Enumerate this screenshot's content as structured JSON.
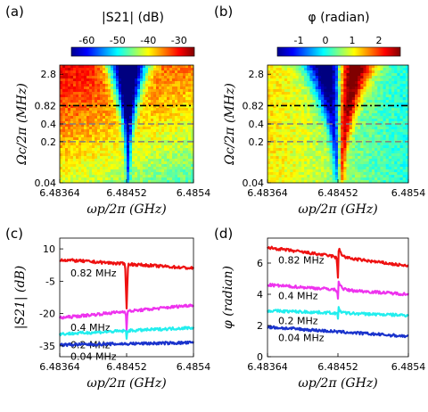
{
  "chart_data": [
    {
      "panel": "(a)",
      "type": "heatmap",
      "colorbar": {
        "title": "|S21| (dB)",
        "ticks": [
          -60,
          -50,
          -40,
          -30
        ],
        "range": [
          -65,
          -25
        ],
        "colormap": "jet"
      },
      "xlabel": "ωp/2π (GHz)",
      "ylabel": "Ωc/2π (MHz)",
      "x_ticks": [
        "6.48364",
        "6.48452",
        "6.4854"
      ],
      "y_ticks": [
        "0.04",
        "0.2",
        "0.4",
        "0.82",
        "2.8"
      ],
      "xlim": [
        6.48364,
        6.4854
      ],
      "ylim": [
        0.04,
        4
      ],
      "y_scale": "log",
      "resonance_x": 6.48452,
      "cut_lines": [
        {
          "y": 0.82,
          "style": "dash-dot",
          "color": "#000000"
        },
        {
          "y": 0.4,
          "style": "dashed",
          "color": "#7f7f7f"
        },
        {
          "y": 0.2,
          "style": "dashed",
          "color": "#7f7f7f"
        }
      ]
    },
    {
      "panel": "(b)",
      "type": "heatmap",
      "colorbar": {
        "title": "φ (radian)",
        "ticks": [
          -1,
          0,
          1,
          2
        ],
        "range": [
          -1.8,
          2.8
        ],
        "colormap": "jet"
      },
      "xlabel": "ωp/2π (GHz)",
      "ylabel": "Ωc/2π (MHz)",
      "x_ticks": [
        "6.48364",
        "6.48452",
        "6.4854"
      ],
      "y_ticks": [
        "0.04",
        "0.2",
        "0.4",
        "0.82",
        "2.8"
      ],
      "xlim": [
        6.48364,
        6.4854
      ],
      "ylim": [
        0.04,
        4
      ],
      "y_scale": "log",
      "resonance_x": 6.48452,
      "cut_lines": [
        {
          "y": 0.82,
          "style": "dash-dot",
          "color": "#000000"
        },
        {
          "y": 0.4,
          "style": "dashed",
          "color": "#7f7f7f"
        },
        {
          "y": 0.2,
          "style": "dashed",
          "color": "#7f7f7f"
        }
      ]
    },
    {
      "panel": "(c)",
      "type": "line",
      "xlabel": "ωp/2π (GHz)",
      "ylabel": "|S21| (dB)",
      "x_ticks": [
        "6.48364",
        "6.48452",
        "6.4854"
      ],
      "y_ticks": [
        10,
        -5,
        -20,
        -35
      ],
      "xlim": [
        6.48364,
        6.4854
      ],
      "ylim": [
        -40,
        15
      ],
      "series": [
        {
          "name": "0.82 MHz",
          "color": "#ee1111",
          "baseline": 3,
          "slope": -4,
          "dip_depth": 20,
          "dip_width": 8e-06,
          "tail": 0
        },
        {
          "name": "0.4 MHz",
          "color": "#ee33ee",
          "baseline": -19,
          "slope": 6,
          "dip_depth": 8,
          "dip_width": 5e-06,
          "tail": 0
        },
        {
          "name": "0.2 MHz",
          "color": "#22eeee",
          "baseline": -28,
          "slope": 3,
          "dip_depth": 4,
          "dip_width": 4e-06,
          "tail": 0
        },
        {
          "name": "0.04 MHz",
          "color": "#1a33cc",
          "baseline": -34,
          "slope": 1,
          "dip_depth": 0.5,
          "dip_width": 3e-06,
          "tail": 0
        }
      ]
    },
    {
      "panel": "(d)",
      "type": "line",
      "xlabel": "ωp/2π (GHz)",
      "ylabel": "φ (radian)",
      "x_ticks": [
        "6.48364",
        "6.48452",
        "6.4854"
      ],
      "y_ticks": [
        0,
        2,
        4,
        6
      ],
      "xlim": [
        6.48364,
        6.4854
      ],
      "ylim": [
        0,
        7.6
      ],
      "series": [
        {
          "name": "0.82 MHz",
          "color": "#ee1111",
          "baseline": 6.4,
          "slope": -1.2,
          "dip_depth": 1.3,
          "dip_width": 6e-06,
          "tail": 1.0
        },
        {
          "name": "0.4 MHz",
          "color": "#ee33ee",
          "baseline": 4.3,
          "slope": -0.6,
          "dip_depth": 0.5,
          "dip_width": 4e-06,
          "tail": 0.8
        },
        {
          "name": "0.2 MHz",
          "color": "#22eeee",
          "baseline": 2.8,
          "slope": -0.3,
          "dip_depth": 0.3,
          "dip_width": 3e-06,
          "tail": 0.4
        },
        {
          "name": "0.04 MHz",
          "color": "#1a33cc",
          "baseline": 1.6,
          "slope": -0.6,
          "dip_depth": 0.05,
          "dip_width": 3e-06,
          "tail": 0.0
        }
      ]
    }
  ]
}
